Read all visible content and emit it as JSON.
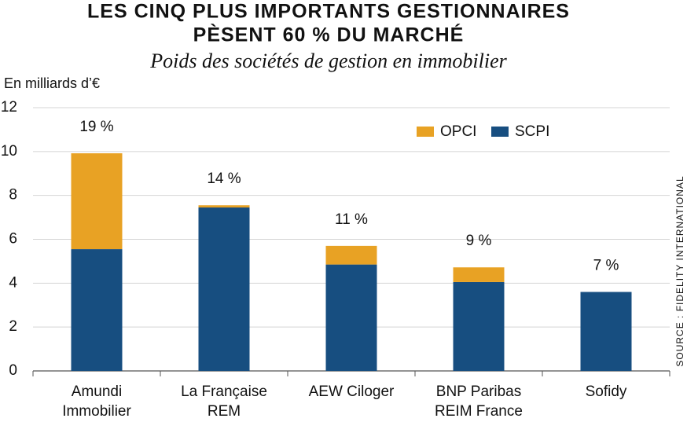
{
  "chart_data": {
    "type": "stacked_bar",
    "title": [
      "LES CINQ PLUS IMPORTANTS GESTIONNAIRES",
      "PÈSENT 60 % DU MARCHÉ"
    ],
    "subtitle": "Poids des sociétés de gestion en immobilier",
    "y_axis_label": "En milliards d’€",
    "source": "SOURCE : FIDELITY INTERNATIONAL",
    "categories": [
      [
        "Amundi",
        "Immobilier"
      ],
      [
        "La Française",
        "REM"
      ],
      [
        "AEW Ciloger"
      ],
      [
        "BNP Paribas",
        "REIM France"
      ],
      [
        "Sofidy"
      ]
    ],
    "series": [
      {
        "name": "OPCI",
        "color": "#e8a224",
        "values": [
          4.37,
          0.1,
          0.85,
          0.67,
          0
        ]
      },
      {
        "name": "SCPI",
        "color": "#174e80",
        "values": [
          5.55,
          7.45,
          4.85,
          4.05,
          3.6
        ]
      }
    ],
    "share_labels": [
      "19 %",
      "14 %",
      "11 %",
      "9 %",
      "7 %"
    ],
    "ylim": [
      0,
      12
    ],
    "yticks": [
      0,
      2,
      4,
      6,
      8,
      10,
      12
    ],
    "grid": true,
    "legend": "top-right"
  }
}
